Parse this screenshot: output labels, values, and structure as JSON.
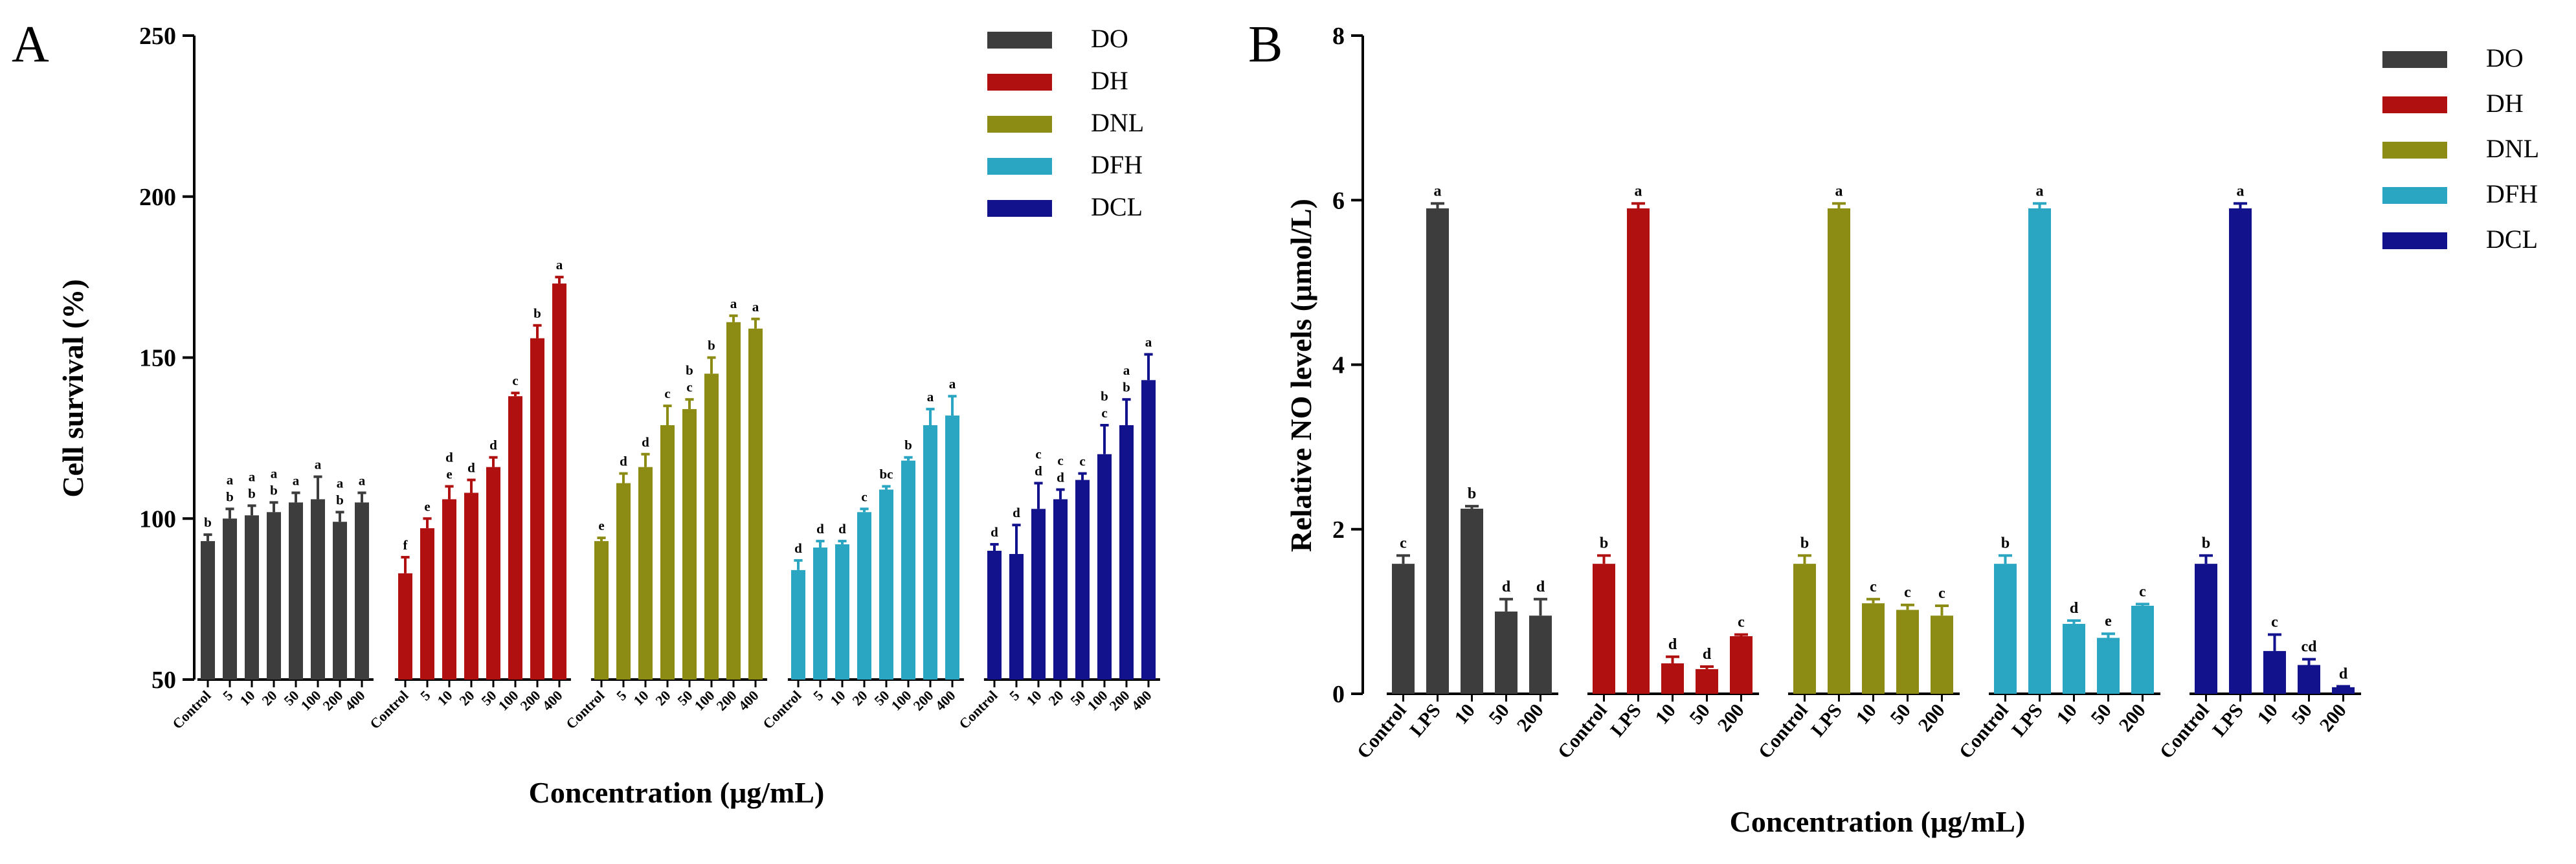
{
  "colors": {
    "DO": "#3d3d3d",
    "DH": "#b01010",
    "DNL": "#8c8c14",
    "DFH": "#2aa5c2",
    "DCL": "#12128c"
  },
  "chart_data": [
    {
      "panel": "A",
      "type": "bar",
      "ylabel": "Cell survival (%)",
      "xlabel": "Concentration (μg/mL)",
      "ylim": [
        50,
        250
      ],
      "yticks": [
        "50",
        "100",
        "150",
        "200",
        "250"
      ],
      "legend": [
        "DO",
        "DH",
        "DNL",
        "DFH",
        "DCL"
      ],
      "legend_position": "top-right",
      "categories": [
        "Control",
        "5",
        "10",
        "20",
        "50",
        "100",
        "200",
        "400"
      ],
      "series": [
        {
          "name": "DO",
          "values": [
            93,
            100,
            101,
            102,
            105,
            106,
            99,
            105
          ],
          "errors": [
            2,
            3,
            3,
            3,
            3,
            7,
            3,
            3
          ],
          "letters": [
            "b",
            "a\nb",
            "a\nb",
            "a\nb",
            "a",
            "a",
            "a\nb",
            "a"
          ]
        },
        {
          "name": "DH",
          "values": [
            83,
            97,
            106,
            108,
            116,
            138,
            156,
            173
          ],
          "errors": [
            5,
            3,
            4,
            4,
            3,
            1,
            4,
            2
          ],
          "letters": [
            "f",
            "e",
            "d\ne",
            "d",
            "d",
            "c",
            "b",
            "a"
          ]
        },
        {
          "name": "DNL",
          "values": [
            93,
            111,
            116,
            129,
            134,
            145,
            161,
            159
          ],
          "errors": [
            1,
            3,
            4,
            6,
            3,
            5,
            2,
            3
          ],
          "letters": [
            "e",
            "d",
            "d",
            "c",
            "b\nc",
            "b",
            "a",
            "a"
          ]
        },
        {
          "name": "DFH",
          "values": [
            84,
            91,
            92,
            102,
            109,
            118,
            129,
            132
          ],
          "errors": [
            3,
            2,
            1,
            1,
            1,
            1,
            5,
            6
          ],
          "letters": [
            "d",
            "d",
            "d",
            "c",
            "bc",
            "b",
            "a",
            "a"
          ]
        },
        {
          "name": "DCL",
          "values": [
            90,
            89,
            103,
            106,
            112,
            120,
            129,
            143
          ],
          "errors": [
            2,
            9,
            8,
            3,
            2,
            9,
            8,
            8
          ],
          "letters": [
            "d",
            "d",
            "c\nd",
            "c\nd",
            "c",
            "b\nc",
            "a\nb",
            "a"
          ]
        }
      ]
    },
    {
      "panel": "B",
      "type": "bar",
      "ylabel": "Relative NO levels  (μmol/L)",
      "xlabel": "Concentration (μg/mL)",
      "ylim": [
        0,
        8
      ],
      "yticks": [
        "0",
        "2",
        "4",
        "6",
        "8"
      ],
      "legend": [
        "DO",
        "DH",
        "DNL",
        "DFH",
        "DCL"
      ],
      "legend_position": "top-right",
      "categories": [
        "Control",
        "LPS",
        "10",
        "50",
        "200"
      ],
      "series": [
        {
          "name": "DO",
          "values": [
            1.58,
            5.9,
            2.25,
            1.0,
            0.95
          ],
          "errors": [
            0.1,
            0.06,
            0.03,
            0.15,
            0.2
          ],
          "letters": [
            "c",
            "a",
            "b",
            "d",
            "d"
          ]
        },
        {
          "name": "DH",
          "values": [
            1.58,
            5.9,
            0.37,
            0.3,
            0.7
          ],
          "errors": [
            0.1,
            0.06,
            0.08,
            0.03,
            0.02
          ],
          "letters": [
            "b",
            "a",
            "d",
            "d",
            "c"
          ]
        },
        {
          "name": "DNL",
          "values": [
            1.58,
            5.9,
            1.1,
            1.02,
            0.95
          ],
          "errors": [
            0.1,
            0.06,
            0.05,
            0.06,
            0.12
          ],
          "letters": [
            "b",
            "a",
            "c",
            "c",
            "c"
          ]
        },
        {
          "name": "DFH",
          "values": [
            1.58,
            5.9,
            0.85,
            0.68,
            1.07
          ],
          "errors": [
            0.1,
            0.06,
            0.04,
            0.05,
            0.02
          ],
          "letters": [
            "b",
            "a",
            "d",
            "e",
            "c"
          ]
        },
        {
          "name": "DCL",
          "values": [
            1.58,
            5.9,
            0.52,
            0.35,
            0.08
          ],
          "errors": [
            0.1,
            0.06,
            0.2,
            0.07,
            0.01
          ],
          "letters": [
            "b",
            "a",
            "c",
            "cd",
            "d"
          ]
        }
      ]
    }
  ]
}
